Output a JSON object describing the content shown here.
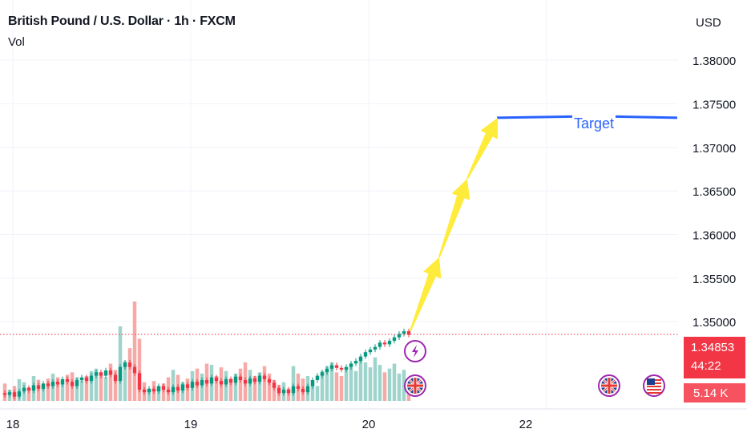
{
  "header": {
    "symbol_title": "British Pound / U.S. Dollar · 1h · FXCM",
    "indicator": "Vol"
  },
  "price_axis": {
    "currency": "USD"
  },
  "last_price": {
    "value": "1.34853",
    "countdown": "44:22",
    "color": "#f23645"
  },
  "volume_badge": {
    "value": "5.14 K",
    "color": "#f7525f"
  },
  "annotation": {
    "target_label": "Target",
    "target_price": 1.3734,
    "line_color": "#2962ff",
    "arrow_color": "#ffeb3b"
  },
  "colors": {
    "up": "#089981",
    "down": "#f23645",
    "vol_up": "#9fd4cc",
    "vol_down": "#f7a9a7"
  },
  "icons": {
    "event_flash": "lightning-icon",
    "event_uk": "uk-flag-icon",
    "event_us": "us-flag-icon"
  },
  "chart_data": {
    "type": "candlestick",
    "ylim": [
      1.341,
      1.387
    ],
    "y_ticks": [
      "1.38000",
      "1.37500",
      "1.37000",
      "1.36500",
      "1.36000",
      "1.35500",
      "1.35000"
    ],
    "x_ticks": [
      "18",
      "19",
      "20",
      "22"
    ],
    "grid": true,
    "candles": {
      "open": [
        1.3418,
        1.3416,
        1.3419,
        1.3414,
        1.342,
        1.3424,
        1.3421,
        1.3427,
        1.3423,
        1.3429,
        1.3426,
        1.3431,
        1.3428,
        1.3434,
        1.3431,
        1.3426,
        1.3433,
        1.3436,
        1.3432,
        1.3438,
        1.3442,
        1.3438,
        1.3444,
        1.3439,
        1.3432,
        1.3448,
        1.3453,
        1.3448,
        1.3441,
        1.3422,
        1.3419,
        1.3423,
        1.342,
        1.3426,
        1.3422,
        1.3419,
        1.3425,
        1.3421,
        1.3428,
        1.3424,
        1.3431,
        1.3427,
        1.3433,
        1.3429,
        1.3436,
        1.3432,
        1.3428,
        1.3434,
        1.343,
        1.3437,
        1.3433,
        1.3429,
        1.3435,
        1.3431,
        1.3438,
        1.3434,
        1.343,
        1.3424,
        1.3418,
        1.3422,
        1.3418,
        1.3426,
        1.3423,
        1.3419,
        1.3426,
        1.3433,
        1.3438,
        1.3442,
        1.3446,
        1.345,
        1.3447,
        1.3445,
        1.3448,
        1.3452,
        1.3455,
        1.346,
        1.3465,
        1.3468,
        1.3471,
        1.3476,
        1.3474,
        1.3478,
        1.3482,
        1.3486,
        1.3489
      ],
      "close": [
        1.3416,
        1.3419,
        1.3414,
        1.342,
        1.3424,
        1.3421,
        1.3427,
        1.3423,
        1.3429,
        1.3426,
        1.3431,
        1.3428,
        1.3434,
        1.3431,
        1.3426,
        1.3433,
        1.3436,
        1.3432,
        1.3438,
        1.3442,
        1.3438,
        1.3444,
        1.3439,
        1.3432,
        1.3448,
        1.3453,
        1.3448,
        1.3441,
        1.3422,
        1.3419,
        1.3423,
        1.342,
        1.3426,
        1.3422,
        1.3419,
        1.3425,
        1.3421,
        1.3428,
        1.3424,
        1.3431,
        1.3427,
        1.3433,
        1.3429,
        1.3436,
        1.3432,
        1.3428,
        1.3434,
        1.343,
        1.3437,
        1.3433,
        1.3429,
        1.3435,
        1.3431,
        1.3438,
        1.3434,
        1.343,
        1.3424,
        1.3418,
        1.3422,
        1.3418,
        1.3426,
        1.3423,
        1.3419,
        1.3426,
        1.3433,
        1.3438,
        1.3442,
        1.3446,
        1.345,
        1.3447,
        1.3445,
        1.3448,
        1.3452,
        1.3455,
        1.346,
        1.3465,
        1.3468,
        1.3471,
        1.3476,
        1.3474,
        1.3478,
        1.3482,
        1.3486,
        1.3489,
        1.3485
      ]
    },
    "volume": [
      28,
      18,
      24,
      35,
      30,
      22,
      40,
      34,
      26,
      36,
      44,
      38,
      30,
      42,
      46,
      38,
      33,
      40,
      48,
      52,
      45,
      38,
      60,
      50,
      120,
      64,
      85,
      160,
      100,
      30,
      20,
      32,
      24,
      28,
      38,
      50,
      42,
      30,
      36,
      48,
      52,
      44,
      60,
      58,
      40,
      54,
      48,
      36,
      44,
      52,
      62,
      50,
      40,
      46,
      56,
      44,
      34,
      26,
      30,
      20,
      56,
      44,
      36,
      40,
      30,
      24,
      48,
      56,
      62,
      46,
      40,
      54,
      60,
      48,
      66,
      62,
      54,
      70,
      58,
      46,
      52,
      60,
      44,
      50,
      28
    ],
    "overlay": {
      "target_line": {
        "price": 1.3734
      },
      "arrow_path_prices": [
        1.3493,
        1.3574,
        1.3664,
        1.3734
      ]
    }
  }
}
